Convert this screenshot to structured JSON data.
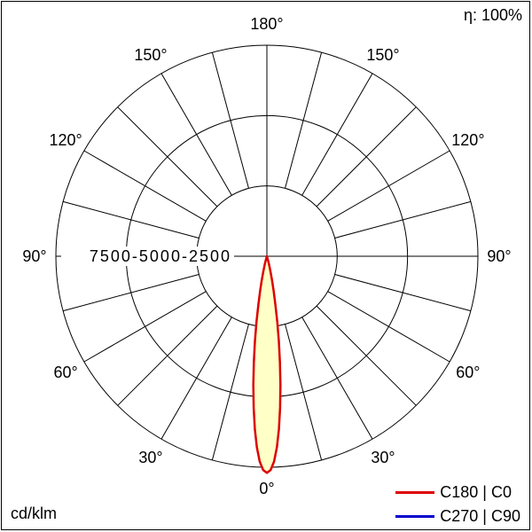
{
  "chart_data": {
    "type": "polar",
    "description": "Photometric polar luminous intensity distribution diagram",
    "unit": "cd/klm",
    "efficiency_label": "η: 100%",
    "radial_max": 7500,
    "radial_ticks": [
      2500,
      5000,
      7500
    ],
    "radial_tick_label": "7500-5000-2500",
    "angle_step_deg": 15,
    "angle_labels": [
      {
        "angle": 0,
        "label": "0°"
      },
      {
        "angle": 30,
        "label": "30°"
      },
      {
        "angle": 60,
        "label": "60°"
      },
      {
        "angle": 90,
        "label": "90°"
      },
      {
        "angle": 120,
        "label": "120°"
      },
      {
        "angle": 150,
        "label": "150°"
      },
      {
        "angle": 180,
        "label": "180°"
      }
    ],
    "legend": [
      {
        "label": "C180 | C0",
        "color": "#dd0000"
      },
      {
        "label": "C270 | C90",
        "color": "#0000cc"
      }
    ],
    "series": [
      {
        "name": "C180 | C0",
        "color": "#dd0000",
        "fill": "#ffffc8",
        "visible": true,
        "gamma_deg": [
          0,
          1,
          2,
          3,
          4,
          5,
          6,
          7,
          8,
          9,
          10,
          11,
          12,
          13,
          14,
          15,
          16,
          18,
          20
        ],
        "values": [
          7700,
          7600,
          7300,
          6800,
          6150,
          5400,
          4600,
          3800,
          3050,
          2350,
          1750,
          1270,
          890,
          600,
          390,
          240,
          140,
          45,
          0
        ]
      },
      {
        "name": "C270 | C90",
        "color": "#0000cc",
        "visible": false,
        "note": "curve not visible (coincides with C180 | C0)"
      }
    ],
    "grid_color": "#000000",
    "background": "#ffffff",
    "layout": {
      "beam_direction": "0° (downward)",
      "grid": "rings at 2500/5000/7500, spokes every 15°",
      "legend_position": "bottom-right"
    }
  }
}
